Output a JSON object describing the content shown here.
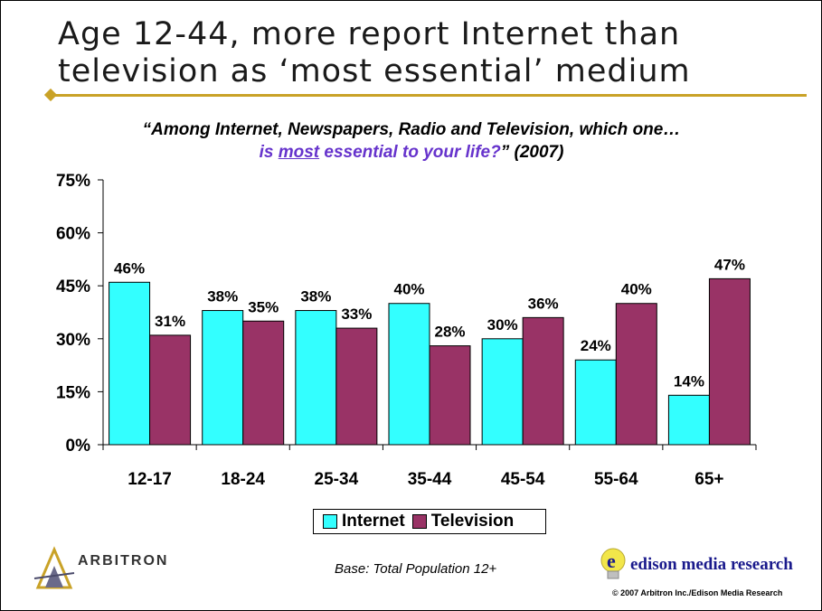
{
  "slide": {
    "title_line1": "Age 12-44, more report Internet than",
    "title_line2": "television as ‘most essential’ medium",
    "question_line1": "“Among Internet, Newspapers, Radio and Television, which one…",
    "question_line2_pre": "is ",
    "question_line2_underline": "most",
    "question_line2_mid": " essential to your life?",
    "question_line2_post": "” (2007)",
    "base_note": "Base:  Total Population 12+",
    "copyright": "© 2007 Arbitron Inc./Edison Media Research",
    "arbitron_logo_text": "ARBITRON",
    "edison_logo_text": "edison media research"
  },
  "colors": {
    "internet": "#33ffff",
    "television": "#993366",
    "accent": "#c9a227",
    "question_highlight": "#6633cc"
  },
  "chart_data": {
    "type": "bar",
    "categories": [
      "12-17",
      "18-24",
      "25-34",
      "35-44",
      "45-54",
      "55-64",
      "65+"
    ],
    "series": [
      {
        "name": "Internet",
        "values": [
          46,
          38,
          38,
          40,
          30,
          24,
          14
        ]
      },
      {
        "name": "Television",
        "values": [
          31,
          35,
          33,
          28,
          36,
          40,
          47
        ]
      }
    ],
    "value_labels": {
      "Internet": [
        "46%",
        "38%",
        "38%",
        "40%",
        "30%",
        "24%",
        "14%"
      ],
      "Television": [
        "31%",
        "35%",
        "33%",
        "28%",
        "36%",
        "40%",
        "47%"
      ]
    },
    "ylim": [
      0,
      75
    ],
    "yticks": [
      "0%",
      "15%",
      "30%",
      "45%",
      "60%",
      "75%"
    ],
    "ytick_values": [
      0,
      15,
      30,
      45,
      60,
      75
    ],
    "legend_position": "bottom",
    "grid": false
  }
}
